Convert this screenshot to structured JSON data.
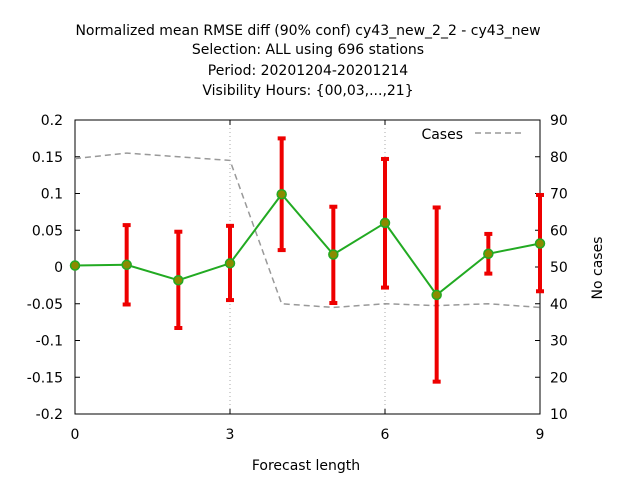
{
  "title_lines": [
    "Normalized mean RMSE diff (90% conf) cy43_new_2_2 - cy43_new",
    "Selection: ALL using   696 stations",
    "Period: 20201204-20201214",
    "Visibility   Hours: {00,03,...,21}"
  ],
  "chart_data": {
    "type": "line",
    "title": "Normalized mean RMSE diff (90% conf) cy43_new_2_2 - cy43_new",
    "xlabel": "Forecast length",
    "ylabel": "",
    "y2label": "No cases",
    "xlim": [
      0,
      9
    ],
    "ylim": [
      -0.2,
      0.2
    ],
    "y2lim": [
      10,
      90
    ],
    "x_ticks": [
      "0",
      "3",
      "6",
      "9"
    ],
    "y_ticks": [
      "0.2",
      "0.15",
      "0.1",
      "0.05",
      "0",
      "-0.05",
      "-0.1",
      "-0.15",
      "-0.2"
    ],
    "y2_ticks": [
      "90",
      "80",
      "70",
      "60",
      "50",
      "40",
      "30",
      "20",
      "10"
    ],
    "grid": "vertical dotted at x = 3, 6",
    "legend_position": "top-right",
    "series": [
      {
        "name": "",
        "color": "#22aa22",
        "marker_color": "#8b8b00",
        "x": [
          0,
          1,
          2,
          3,
          4,
          5,
          6,
          7,
          8,
          9
        ],
        "y": [
          0.002,
          0.003,
          -0.018,
          0.005,
          0.099,
          0.017,
          0.06,
          -0.038,
          0.018,
          0.032
        ],
        "err_low": [
          0.002,
          -0.051,
          -0.083,
          -0.045,
          0.023,
          -0.049,
          -0.028,
          -0.156,
          -0.009,
          -0.033
        ],
        "err_high": [
          0.002,
          0.057,
          0.048,
          0.056,
          0.175,
          0.082,
          0.147,
          0.081,
          0.045,
          0.098
        ],
        "err_color": "#ee0000"
      },
      {
        "name": "Cases",
        "axis": "right",
        "color": "#999999",
        "dash": true,
        "x": [
          0,
          1,
          2,
          3,
          4,
          5,
          6,
          7,
          8,
          9
        ],
        "y": [
          79.5,
          81,
          80,
          79,
          40,
          39,
          40,
          39.5,
          40,
          39
        ]
      }
    ]
  }
}
